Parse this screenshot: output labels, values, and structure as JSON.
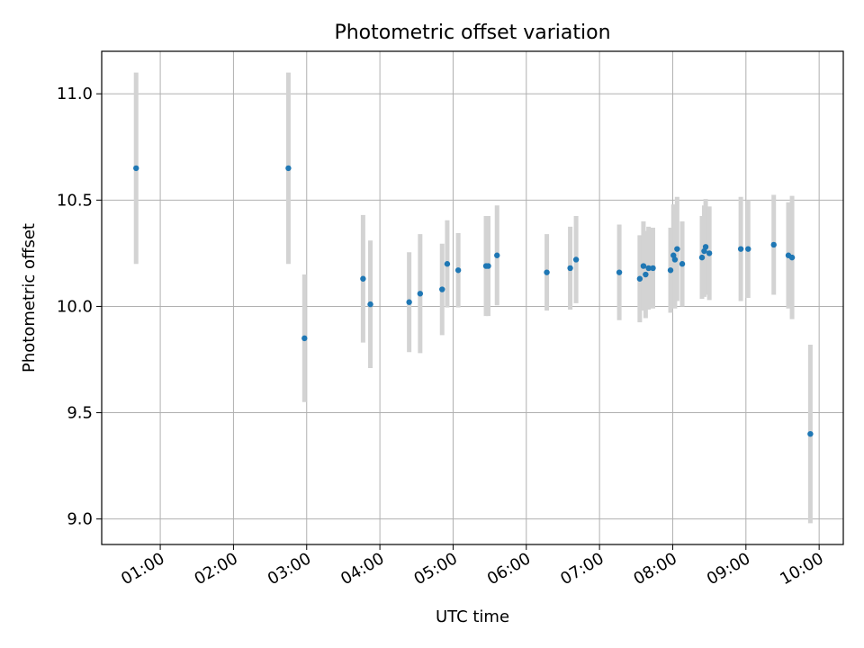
{
  "chart_data": {
    "type": "scatter",
    "title": "Photometric offset variation",
    "xlabel": "UTC time",
    "ylabel": "Photometric offset",
    "x_unit": "hours UTC",
    "xlim": [
      0.2,
      10.33
    ],
    "ylim": [
      8.88,
      11.2
    ],
    "xticks": [
      1,
      2,
      3,
      4,
      5,
      6,
      7,
      8,
      9,
      10
    ],
    "xtick_labels": [
      "01:00",
      "02:00",
      "03:00",
      "04:00",
      "05:00",
      "06:00",
      "07:00",
      "08:00",
      "09:00",
      "10:00"
    ],
    "yticks": [
      9.0,
      9.5,
      10.0,
      10.5,
      11.0
    ],
    "ytick_labels": [
      "9.0",
      "9.5",
      "10.0",
      "10.5",
      "11.0"
    ],
    "grid": true,
    "colors": {
      "point": "#1f77b4",
      "errorbar": "#d3d3d3",
      "grid": "#b0b0b0"
    },
    "points": [
      {
        "t": 0.67,
        "y": 10.65,
        "err": 0.45
      },
      {
        "t": 2.75,
        "y": 10.65,
        "err": 0.45
      },
      {
        "t": 2.97,
        "y": 9.85,
        "err": 0.3
      },
      {
        "t": 3.77,
        "y": 10.13,
        "err": 0.3
      },
      {
        "t": 3.87,
        "y": 10.01,
        "err": 0.3
      },
      {
        "t": 4.4,
        "y": 10.02,
        "err": 0.235
      },
      {
        "t": 4.55,
        "y": 10.06,
        "err": 0.28
      },
      {
        "t": 4.85,
        "y": 10.08,
        "err": 0.215
      },
      {
        "t": 4.92,
        "y": 10.2,
        "err": 0.205
      },
      {
        "t": 5.07,
        "y": 10.17,
        "err": 0.175
      },
      {
        "t": 5.45,
        "y": 10.19,
        "err": 0.235
      },
      {
        "t": 5.48,
        "y": 10.19,
        "err": 0.235
      },
      {
        "t": 5.6,
        "y": 10.24,
        "err": 0.235
      },
      {
        "t": 6.28,
        "y": 10.16,
        "err": 0.18
      },
      {
        "t": 6.6,
        "y": 10.18,
        "err": 0.195
      },
      {
        "t": 6.68,
        "y": 10.22,
        "err": 0.205
      },
      {
        "t": 7.27,
        "y": 10.16,
        "err": 0.225
      },
      {
        "t": 7.55,
        "y": 10.13,
        "err": 0.205
      },
      {
        "t": 7.6,
        "y": 10.19,
        "err": 0.21
      },
      {
        "t": 7.63,
        "y": 10.15,
        "err": 0.205
      },
      {
        "t": 7.67,
        "y": 10.18,
        "err": 0.195
      },
      {
        "t": 7.73,
        "y": 10.18,
        "err": 0.19
      },
      {
        "t": 7.97,
        "y": 10.17,
        "err": 0.2
      },
      {
        "t": 8.01,
        "y": 10.24,
        "err": 0.24
      },
      {
        "t": 8.03,
        "y": 10.22,
        "err": 0.23
      },
      {
        "t": 8.06,
        "y": 10.27,
        "err": 0.245
      },
      {
        "t": 8.13,
        "y": 10.2,
        "err": 0.2
      },
      {
        "t": 8.4,
        "y": 10.23,
        "err": 0.195
      },
      {
        "t": 8.43,
        "y": 10.26,
        "err": 0.215
      },
      {
        "t": 8.45,
        "y": 10.28,
        "err": 0.225
      },
      {
        "t": 8.5,
        "y": 10.25,
        "err": 0.22
      },
      {
        "t": 8.93,
        "y": 10.27,
        "err": 0.245
      },
      {
        "t": 9.03,
        "y": 10.27,
        "err": 0.23
      },
      {
        "t": 9.38,
        "y": 10.29,
        "err": 0.235
      },
      {
        "t": 9.58,
        "y": 10.24,
        "err": 0.25
      },
      {
        "t": 9.63,
        "y": 10.23,
        "err": 0.29
      },
      {
        "t": 9.88,
        "y": 9.4,
        "err": 0.42
      }
    ]
  }
}
